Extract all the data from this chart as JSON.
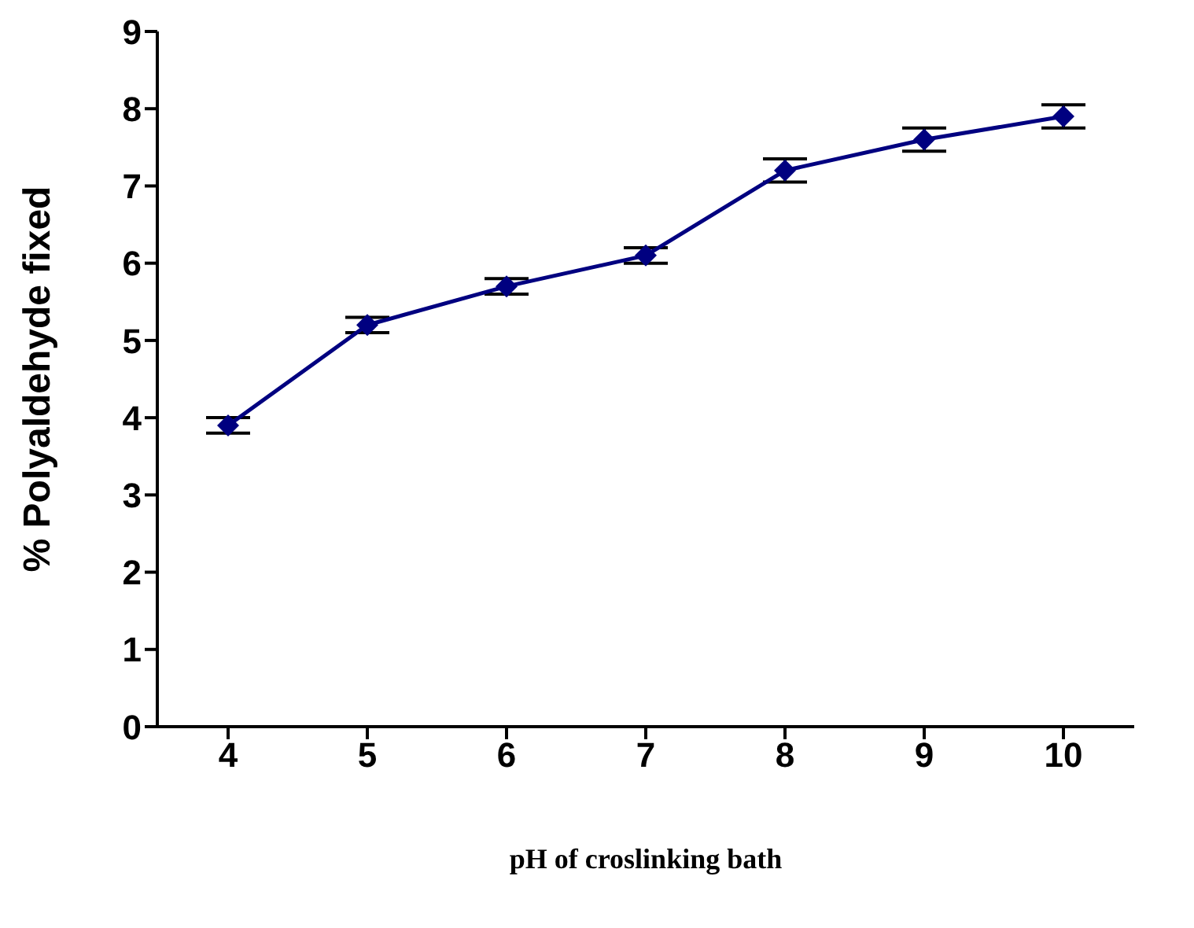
{
  "chart_data": {
    "type": "line",
    "xlabel": "pH of croslinking bath",
    "ylabel": "% Polyaldehyde fixed",
    "categories": [
      "4",
      "5",
      "6",
      "7",
      "8",
      "9",
      "10"
    ],
    "series": [
      {
        "color": "#000080",
        "values": [
          3.9,
          5.2,
          5.7,
          6.1,
          7.2,
          7.6,
          7.9
        ],
        "errors": [
          0.1,
          0.1,
          0.1,
          0.1,
          0.15,
          0.15,
          0.15
        ]
      }
    ],
    "ylim": [
      0,
      9
    ],
    "yticks": [
      0,
      1,
      2,
      3,
      4,
      5,
      6,
      7,
      8,
      9
    ],
    "grid": false,
    "legend": false,
    "marker": "diamond",
    "line_style": "solid"
  }
}
